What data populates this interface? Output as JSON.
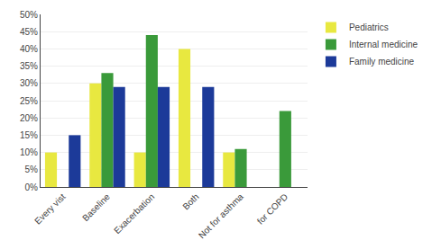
{
  "chart_data": {
    "type": "bar",
    "categories": [
      "Every vist",
      "Baseline",
      "Exacerbation",
      "Both",
      "Not for asthma",
      "for COPD"
    ],
    "series": [
      {
        "name": "Pediatrics",
        "color": "#E8E840",
        "values": [
          10,
          30,
          10,
          40,
          10,
          0
        ]
      },
      {
        "name": "Internal medicine",
        "color": "#3A9A3A",
        "values": [
          0,
          33,
          44,
          0,
          11,
          22
        ]
      },
      {
        "name": "Family medicine",
        "color": "#1C3A99",
        "values": [
          15,
          29,
          29,
          29,
          0,
          0
        ]
      }
    ],
    "ylim": [
      0,
      50
    ],
    "yticks": [
      {
        "value": 0,
        "label": "0%"
      },
      {
        "value": 5,
        "label": "5%"
      },
      {
        "value": 10,
        "label": "10%"
      },
      {
        "value": 15,
        "label": "15%"
      },
      {
        "value": 20,
        "label": "20%"
      },
      {
        "value": 25,
        "label": "25%"
      },
      {
        "value": 30,
        "label": "30%"
      },
      {
        "value": 35,
        "label": "35%"
      },
      {
        "value": 40,
        "label": "40%"
      },
      {
        "value": 45,
        "label": "45%"
      },
      {
        "value": 50,
        "label": "50%"
      }
    ],
    "grid": true,
    "legend": "right"
  }
}
